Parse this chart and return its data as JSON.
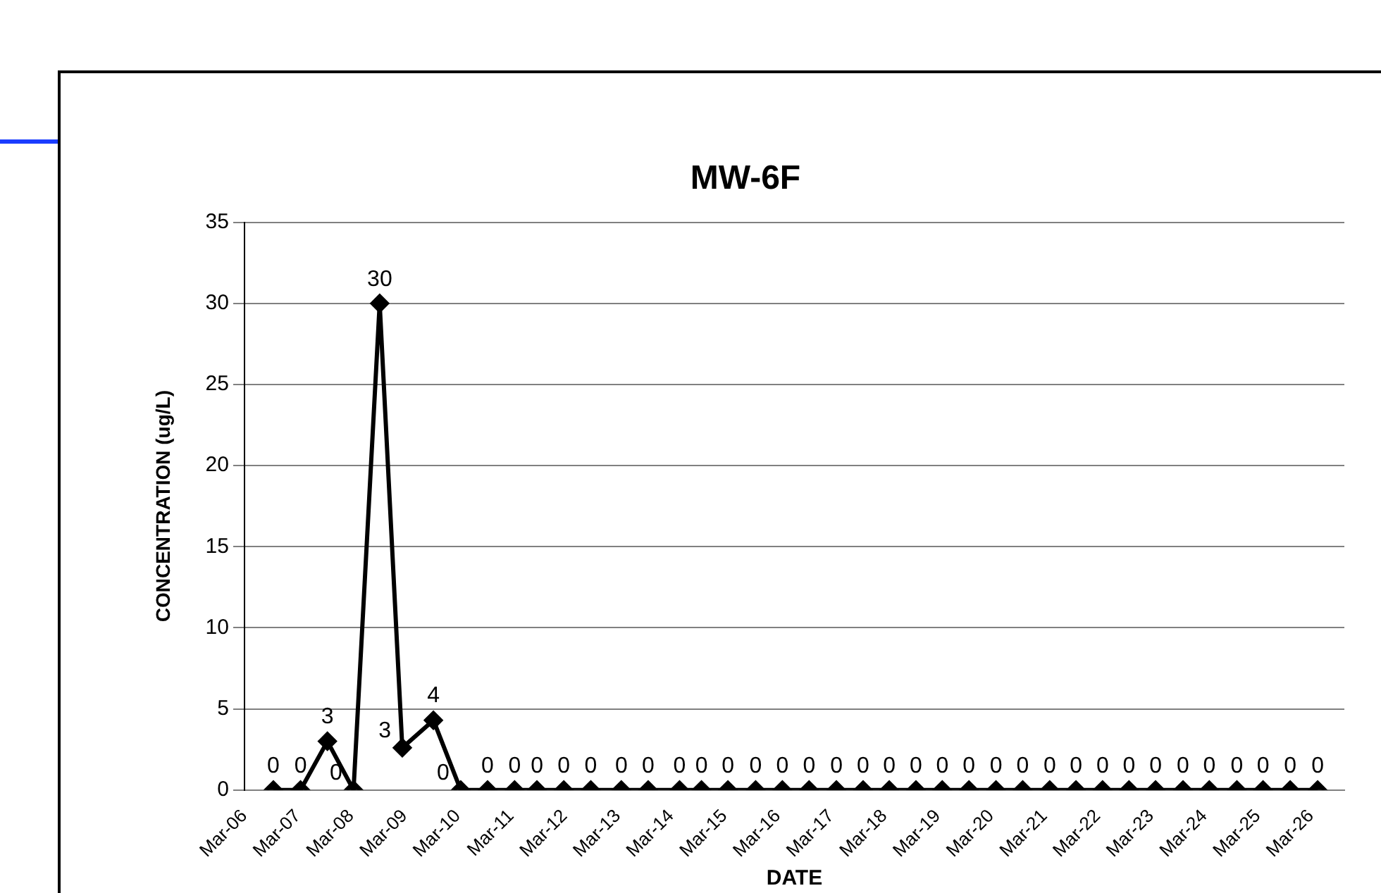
{
  "chart_data": {
    "type": "line",
    "title": "MW-6F",
    "xlabel": "DATE",
    "ylabel": "CONCENTRATION (ug/L)",
    "x": [
      "2006-09-15",
      "2007-03-20",
      "2007-09-20",
      "2008-03-17",
      "2008-09-12",
      "2009-02-14",
      "2009-09-15",
      "2010-03-21",
      "2010-09-21",
      "2011-03-25",
      "2011-08-25",
      "2012-02-25",
      "2012-08-28",
      "2013-03-25",
      "2013-09-25",
      "2014-04-28",
      "2014-09-25",
      "2015-03-25",
      "2015-10-01",
      "2016-04-01",
      "2016-10-01",
      "2017-04-06",
      "2017-10-06",
      "2018-04-03",
      "2018-10-03",
      "2019-04-01",
      "2019-10-01",
      "2020-04-03",
      "2020-10-03",
      "2021-04-06",
      "2021-10-03",
      "2022-04-03",
      "2022-10-01",
      "2023-04-01",
      "2023-10-06",
      "2024-04-03",
      "2024-10-09",
      "2025-04-06",
      "2025-10-09",
      "2026-04-15"
    ],
    "series": [
      {
        "color": "#000000",
        "values": [
          0,
          0,
          3,
          0,
          30,
          2.6,
          4.3,
          0,
          0,
          0,
          0,
          0,
          0,
          0,
          0,
          0,
          0,
          0,
          0,
          0,
          0,
          0,
          0,
          0,
          0,
          0,
          0,
          0,
          0,
          0,
          0,
          0,
          0,
          0,
          0,
          0,
          0,
          0,
          0,
          0
        ],
        "value_labels": [
          "0",
          "0",
          "3",
          "0",
          "30",
          "3",
          "4",
          "0",
          "0",
          "0",
          "0",
          "0",
          "0",
          "0",
          "0",
          "0",
          "0",
          "0",
          "0",
          "0",
          "0",
          "0",
          "0",
          "0",
          "0",
          "0",
          "0",
          "0",
          "0",
          "0",
          "0",
          "0",
          "0",
          "0",
          "0",
          "0",
          "0",
          "0",
          "0",
          "0"
        ]
      }
    ],
    "xlim": [
      "2006-03-01",
      "2026-10-15"
    ],
    "xticks": [
      {
        "value": "2006-03-01",
        "label": "Mar-06"
      },
      {
        "value": "2007-03-01",
        "label": "Mar-07"
      },
      {
        "value": "2008-03-01",
        "label": "Mar-08"
      },
      {
        "value": "2009-03-01",
        "label": "Mar-09"
      },
      {
        "value": "2010-03-01",
        "label": "Mar-10"
      },
      {
        "value": "2011-03-01",
        "label": "Mar-11"
      },
      {
        "value": "2012-03-01",
        "label": "Mar-12"
      },
      {
        "value": "2013-03-01",
        "label": "Mar-13"
      },
      {
        "value": "2014-03-01",
        "label": "Mar-14"
      },
      {
        "value": "2015-03-01",
        "label": "Mar-15"
      },
      {
        "value": "2016-03-01",
        "label": "Mar-16"
      },
      {
        "value": "2017-03-01",
        "label": "Mar-17"
      },
      {
        "value": "2018-03-01",
        "label": "Mar-18"
      },
      {
        "value": "2019-03-01",
        "label": "Mar-19"
      },
      {
        "value": "2020-03-01",
        "label": "Mar-20"
      },
      {
        "value": "2021-03-01",
        "label": "Mar-21"
      },
      {
        "value": "2022-03-01",
        "label": "Mar-22"
      },
      {
        "value": "2023-03-01",
        "label": "Mar-23"
      },
      {
        "value": "2024-03-01",
        "label": "Mar-24"
      },
      {
        "value": "2025-03-01",
        "label": "Mar-25"
      },
      {
        "value": "2026-03-01",
        "label": "Mar-26"
      }
    ],
    "ylim": [
      0,
      35
    ],
    "yticks": [
      0,
      5,
      10,
      15,
      20,
      25,
      30,
      35
    ],
    "grid": "y",
    "marker": "diamond",
    "line_style": "solid",
    "legend": false
  }
}
